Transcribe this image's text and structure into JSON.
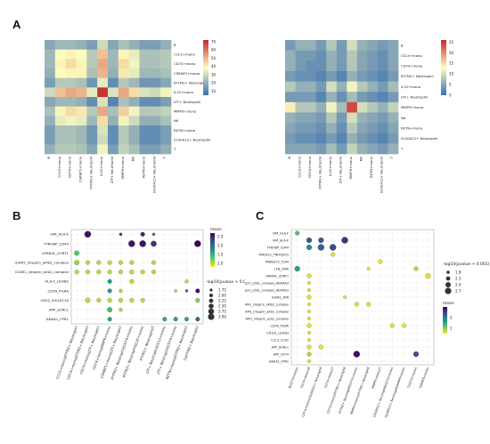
{
  "panels": {
    "a": "A",
    "b": "B",
    "c": "C"
  },
  "chart_data": [
    {
      "type": "heatmap",
      "panel": "A-left",
      "rows": [
        "B",
        "CCL5+mono",
        "CD74+mono",
        "CSRNP1+mono",
        "IFITM2+ Neutrophil",
        "IL32+mono",
        "LTF+ Neutrophil",
        "MMP9+mono",
        "NK",
        "RETN+mono",
        "S100A12+ Neutrophil",
        "T"
      ],
      "columns": [
        "B",
        "CCL5+mono",
        "CD74+mono",
        "CSRNP1+mono",
        "IFITM2+ Neutrophil",
        "IL32+mono",
        "LTF+ Neutrophil",
        "MMP9+mono",
        "NK",
        "RETN+mono",
        "S100A12+ Neutrophil",
        "T"
      ],
      "values": [
        [
          18,
          22,
          22,
          20,
          16,
          30,
          18,
          24,
          20,
          16,
          16,
          20
        ],
        [
          22,
          38,
          40,
          38,
          26,
          48,
          22,
          40,
          34,
          24,
          24,
          26
        ],
        [
          22,
          40,
          44,
          40,
          26,
          52,
          22,
          44,
          36,
          24,
          24,
          26
        ],
        [
          20,
          38,
          40,
          40,
          24,
          50,
          20,
          42,
          34,
          22,
          22,
          24
        ],
        [
          16,
          26,
          26,
          24,
          14,
          34,
          12,
          26,
          22,
          14,
          14,
          18
        ],
        [
          30,
          48,
          52,
          50,
          34,
          70,
          32,
          52,
          44,
          32,
          30,
          36
        ],
        [
          18,
          22,
          22,
          20,
          12,
          32,
          10,
          24,
          20,
          12,
          12,
          16
        ],
        [
          24,
          40,
          44,
          42,
          26,
          52,
          24,
          46,
          36,
          26,
          26,
          28
        ],
        [
          20,
          34,
          36,
          34,
          22,
          44,
          20,
          36,
          30,
          20,
          20,
          24
        ],
        [
          16,
          24,
          24,
          22,
          14,
          32,
          12,
          26,
          20,
          12,
          12,
          16
        ],
        [
          16,
          24,
          24,
          22,
          14,
          30,
          12,
          26,
          20,
          12,
          12,
          16
        ],
        [
          20,
          26,
          26,
          24,
          18,
          36,
          16,
          28,
          24,
          16,
          16,
          20
        ]
      ],
      "colorbar_ticks": [
        "70",
        "60",
        "50",
        "40",
        "30",
        "20",
        "10"
      ],
      "vmin": 5,
      "vmax": 72,
      "colors": {
        "low": "#3b6fb0",
        "mid": "#ffffbf",
        "high": "#c6272b"
      }
    },
    {
      "type": "heatmap",
      "panel": "A-right",
      "rows": [
        "B",
        "CCL5+mono",
        "CD74+mono",
        "IFITM2+ Neutrophil",
        "IL32+mono",
        "LTF+ Neutrophil",
        "MMP9+mono",
        "NK",
        "RETN+mono",
        "S100A12+ Neutrophil",
        "T"
      ],
      "columns": [
        "B",
        "CCL5+mono",
        "CD74+mono",
        "IFITM2+ Neutrophil",
        "IL32+mono",
        "LTF+ Neutrophil",
        "MMP9+mono",
        "NK",
        "RETN+mono",
        "S100A12+ Neutrophil",
        "T"
      ],
      "values": [
        [
          4,
          6,
          6,
          4,
          8,
          4,
          10,
          6,
          5,
          4,
          5
        ],
        [
          6,
          4,
          4,
          3,
          6,
          4,
          8,
          5,
          4,
          3,
          5
        ],
        [
          6,
          4,
          3,
          3,
          6,
          4,
          8,
          5,
          4,
          3,
          5
        ],
        [
          4,
          3,
          3,
          2,
          4,
          2,
          6,
          4,
          3,
          2,
          4
        ],
        [
          8,
          6,
          6,
          4,
          10,
          6,
          12,
          8,
          6,
          4,
          7
        ],
        [
          4,
          4,
          4,
          2,
          6,
          3,
          7,
          4,
          3,
          2,
          4
        ],
        [
          14,
          8,
          8,
          6,
          12,
          7,
          24,
          10,
          8,
          6,
          9
        ],
        [
          6,
          5,
          5,
          4,
          8,
          4,
          10,
          6,
          5,
          4,
          6
        ],
        [
          5,
          4,
          4,
          3,
          6,
          3,
          8,
          5,
          4,
          3,
          5
        ],
        [
          4,
          3,
          3,
          2,
          4,
          2,
          6,
          4,
          3,
          2,
          4
        ],
        [
          5,
          5,
          5,
          4,
          7,
          4,
          9,
          6,
          5,
          4,
          6
        ]
      ],
      "colorbar_ticks": [
        "25",
        "20",
        "15",
        "10",
        "5",
        "0"
      ],
      "vmin": 0,
      "vmax": 26,
      "colors": {
        "low": "#3b6fb0",
        "mid": "#ffffbf",
        "high": "#c6272b"
      }
    },
    {
      "type": "scatter",
      "panel": "B",
      "rows": [
        "VIM_HLA-E",
        "TYROBP_CD44",
        "LRRN4L_SORT1",
        "ICAM1_integrin_aMb2_complex",
        "ICAM1_integrin_aXb2_complex",
        "HLA-F_LILRB2",
        "CD99_PILRA",
        "CD52_SIGLEC10",
        "APP_SORL1",
        "ANXA1_FPR1"
      ],
      "columns": [
        "CCL5+mono|IFITM2+ Neutrophil",
        "CD74+mono|IFITM2+ Neutrophil",
        "CD74+mono|LTF+ Neutrophil",
        "CD74+mono|MMP9+mono",
        "CSRNP1+mono|LTF+ Neutrophil",
        "IFITM2+ Neutrophil|CD74+mono",
        "IFITM2+ Neutrophil|IL32+mono",
        "IFITM2+ Neutrophil|T",
        "LTF+ Neutrophil|CCL5+mono",
        "LTF+ Neutrophil|CD74+mono",
        "RETN+mono|IFITM2+ Neutrophil",
        "T|IFITM2+ Neutrophil"
      ],
      "points": [
        {
          "r": 0,
          "c": 1,
          "mean": 2.6,
          "logp": 3.0
        },
        {
          "r": 0,
          "c": 4,
          "mean": 2.4,
          "logp": 1.75
        },
        {
          "r": 0,
          "c": 6,
          "mean": 2.5,
          "logp": 2.25
        },
        {
          "r": 0,
          "c": 7,
          "mean": 2.0,
          "logp": 1.75
        },
        {
          "r": 1,
          "c": 5,
          "mean": 2.6,
          "logp": 3.0
        },
        {
          "r": 1,
          "c": 6,
          "mean": 2.6,
          "logp": 3.0
        },
        {
          "r": 1,
          "c": 7,
          "mean": 2.4,
          "logp": 2.75
        },
        {
          "r": 1,
          "c": 11,
          "mean": 2.7,
          "logp": 3.0
        },
        {
          "r": 2,
          "c": 0,
          "mean": 1.3,
          "logp": 2.5
        },
        {
          "r": 3,
          "c": 0,
          "mean": 1.1,
          "logp": 2.5
        },
        {
          "r": 3,
          "c": 1,
          "mean": 1.0,
          "logp": 2.25
        },
        {
          "r": 3,
          "c": 2,
          "mean": 1.0,
          "logp": 2.25
        },
        {
          "r": 3,
          "c": 3,
          "mean": 1.0,
          "logp": 2.25
        },
        {
          "r": 3,
          "c": 4,
          "mean": 1.0,
          "logp": 2.25
        },
        {
          "r": 3,
          "c": 5,
          "mean": 1.0,
          "logp": 2.25
        },
        {
          "r": 3,
          "c": 7,
          "mean": 1.0,
          "logp": 2.25
        },
        {
          "r": 4,
          "c": 0,
          "mean": 1.0,
          "logp": 2.25
        },
        {
          "r": 4,
          "c": 1,
          "mean": 1.0,
          "logp": 2.25
        },
        {
          "r": 4,
          "c": 2,
          "mean": 1.0,
          "logp": 2.25
        },
        {
          "r": 4,
          "c": 3,
          "mean": 1.0,
          "logp": 2.25
        },
        {
          "r": 4,
          "c": 4,
          "mean": 1.0,
          "logp": 2.25
        },
        {
          "r": 4,
          "c": 5,
          "mean": 1.0,
          "logp": 2.25
        },
        {
          "r": 4,
          "c": 6,
          "mean": 1.0,
          "logp": 2.25
        },
        {
          "r": 4,
          "c": 7,
          "mean": 1.0,
          "logp": 2.25
        },
        {
          "r": 5,
          "c": 3,
          "mean": 1.7,
          "logp": 2.25
        },
        {
          "r": 5,
          "c": 5,
          "mean": 1.0,
          "logp": 2.25
        },
        {
          "r": 5,
          "c": 10,
          "mean": 1.0,
          "logp": 2.0
        },
        {
          "r": 6,
          "c": 3,
          "mean": 1.7,
          "logp": 2.25
        },
        {
          "r": 6,
          "c": 4,
          "mean": 1.0,
          "logp": 2.0
        },
        {
          "r": 6,
          "c": 9,
          "mean": 1.0,
          "logp": 1.75
        },
        {
          "r": 6,
          "c": 10,
          "mean": 2.0,
          "logp": 1.75
        },
        {
          "r": 6,
          "c": 11,
          "mean": 2.6,
          "logp": 2.25
        },
        {
          "r": 7,
          "c": 1,
          "mean": 1.0,
          "logp": 2.5
        },
        {
          "r": 7,
          "c": 2,
          "mean": 1.0,
          "logp": 2.25
        },
        {
          "r": 7,
          "c": 3,
          "mean": 1.0,
          "logp": 2.25
        },
        {
          "r": 7,
          "c": 4,
          "mean": 1.0,
          "logp": 2.25
        },
        {
          "r": 7,
          "c": 5,
          "mean": 1.0,
          "logp": 2.25
        },
        {
          "r": 7,
          "c": 6,
          "mean": 1.0,
          "logp": 2.25
        },
        {
          "r": 7,
          "c": 11,
          "mean": 1.2,
          "logp": 2.25
        },
        {
          "r": 8,
          "c": 3,
          "mean": 1.4,
          "logp": 2.5
        },
        {
          "r": 8,
          "c": 4,
          "mean": 1.0,
          "logp": 2.0
        },
        {
          "r": 9,
          "c": 3,
          "mean": 1.6,
          "logp": 2.25
        },
        {
          "r": 9,
          "c": 8,
          "mean": 1.6,
          "logp": 2.25
        },
        {
          "r": 9,
          "c": 9,
          "mean": 1.6,
          "logp": 2.25
        },
        {
          "r": 9,
          "c": 10,
          "mean": 1.6,
          "logp": 2.25
        },
        {
          "r": 9,
          "c": 11,
          "mean": 2.0,
          "logp": 2.25
        }
      ],
      "color_legend": {
        "title": "mean",
        "ticks": [
          "2.5",
          "2.0",
          "1.5",
          "1.0"
        ],
        "vmin": 0.8,
        "vmax": 2.7
      },
      "size_legend": {
        "title": "-log10(pvalue + 0.001)",
        "items": [
          "1.75",
          "2.00",
          "2.25",
          "2.50",
          "2.75",
          "3.00"
        ]
      }
    },
    {
      "type": "scatter",
      "panel": "C",
      "rows": [
        "VIM_HLA-F",
        "VIM_HLA-E",
        "TYROBP_CD44",
        "TNFSF12_TNFRSF25",
        "RNASET2_TLR4",
        "LTB_LTBR",
        "LRRN4L_SORT1",
        "Fdgcin_a5b1_complex_ADORA3",
        "Fdgcin_a5b1_complex_ADORA3",
        "ICAM1_SPN",
        "ICAM1_integrin_aMb2_complex",
        "ICAM1_integrin_aXb2_complex",
        "ICAM1_integrin_aLb2_complex",
        "CD99_PILRA",
        "CD101_LILRB3",
        "CCL3_CCR1",
        "APP_SORL1",
        "APP_CD74",
        "ANXA1_FPR1"
      ],
      "columns": [
        "B|CD74+mono",
        "CD74+mono|B",
        "CD74+mono|S100A12+ Neutrophil",
        "CD74+mono|T",
        "CD74+mono|IFITM2+ Neutrophil",
        "IFITM2+ Neutrophil|CD74+mono",
        "MMP9+mono|IFITM2+ Neutrophil",
        "MMP9+mono|T",
        "S100A12+ Neutrophil|CD74+mono",
        "S100A12+ Neutrophil|MMP9+mono",
        "T|CD74+mono",
        "T|MMP9+mono"
      ],
      "points": [
        {
          "r": 0,
          "c": 0,
          "mean": 1.2,
          "logp": 2.1
        },
        {
          "r": 1,
          "c": 1,
          "mean": 2.3,
          "logp": 2.4
        },
        {
          "r": 1,
          "c": 2,
          "mean": 2.3,
          "logp": 2.4
        },
        {
          "r": 1,
          "c": 4,
          "mean": 2.6,
          "logp": 2.7
        },
        {
          "r": 2,
          "c": 1,
          "mean": 1.8,
          "logp": 2.4
        },
        {
          "r": 2,
          "c": 2,
          "mean": 2.2,
          "logp": 2.7
        },
        {
          "r": 2,
          "c": 3,
          "mean": 2.4,
          "logp": 2.7
        },
        {
          "r": 3,
          "c": 3,
          "mean": 0.6,
          "logp": 2.1
        },
        {
          "r": 4,
          "c": 7,
          "mean": 0.6,
          "logp": 2.1
        },
        {
          "r": 5,
          "c": 0,
          "mean": 1.6,
          "logp": 2.4
        },
        {
          "r": 5,
          "c": 6,
          "mean": 0.6,
          "logp": 1.8
        },
        {
          "r": 5,
          "c": 10,
          "mean": 0.8,
          "logp": 2.1
        },
        {
          "r": 6,
          "c": 1,
          "mean": 0.6,
          "logp": 2.1
        },
        {
          "r": 6,
          "c": 11,
          "mean": 0.6,
          "logp": 2.4
        },
        {
          "r": 7,
          "c": 1,
          "mean": 0.6,
          "logp": 1.8
        },
        {
          "r": 8,
          "c": 1,
          "mean": 0.6,
          "logp": 1.8
        },
        {
          "r": 9,
          "c": 1,
          "mean": 0.6,
          "logp": 2.1
        },
        {
          "r": 9,
          "c": 4,
          "mean": 0.6,
          "logp": 1.8
        },
        {
          "r": 10,
          "c": 1,
          "mean": 0.6,
          "logp": 1.8
        },
        {
          "r": 10,
          "c": 5,
          "mean": 0.6,
          "logp": 2.1
        },
        {
          "r": 10,
          "c": 6,
          "mean": 0.6,
          "logp": 2.1
        },
        {
          "r": 11,
          "c": 1,
          "mean": 0.6,
          "logp": 1.8
        },
        {
          "r": 12,
          "c": 1,
          "mean": 0.6,
          "logp": 1.8
        },
        {
          "r": 13,
          "c": 1,
          "mean": 0.6,
          "logp": 2.1
        },
        {
          "r": 13,
          "c": 8,
          "mean": 0.6,
          "logp": 2.1
        },
        {
          "r": 13,
          "c": 9,
          "mean": 0.6,
          "logp": 2.1
        },
        {
          "r": 14,
          "c": 1,
          "mean": 0.6,
          "logp": 1.8
        },
        {
          "r": 15,
          "c": 1,
          "mean": 0.6,
          "logp": 1.8
        },
        {
          "r": 16,
          "c": 1,
          "mean": 0.6,
          "logp": 2.1
        },
        {
          "r": 16,
          "c": 2,
          "mean": 0.6,
          "logp": 2.1
        },
        {
          "r": 17,
          "c": 1,
          "mean": 0.8,
          "logp": 2.1
        },
        {
          "r": 17,
          "c": 5,
          "mean": 2.9,
          "logp": 2.7
        },
        {
          "r": 17,
          "c": 10,
          "mean": 2.4,
          "logp": 2.4
        },
        {
          "r": 18,
          "c": 1,
          "mean": 0.6,
          "logp": 1.8
        }
      ],
      "color_legend": {
        "title": "mean",
        "ticks": [
          "2",
          "1"
        ],
        "vmin": 0.5,
        "vmax": 3.0
      },
      "size_legend": {
        "title": "-log10(pvalue + 0.001)",
        "items": [
          "1.8",
          "2.1",
          "2.4",
          "2.7"
        ]
      }
    }
  ]
}
